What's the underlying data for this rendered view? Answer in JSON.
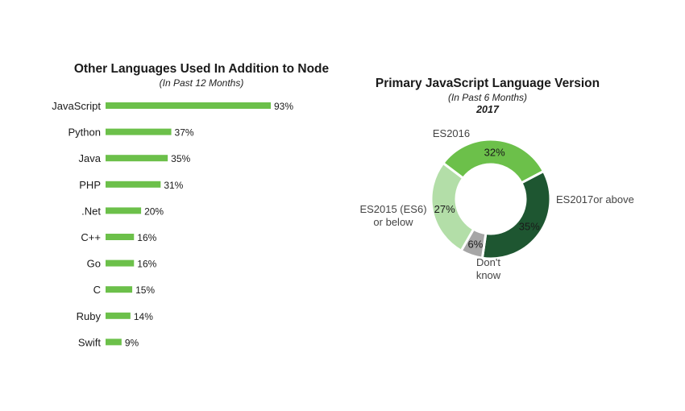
{
  "chart_data": [
    {
      "type": "bar",
      "orientation": "horizontal",
      "title": "Other Languages Used In Addition to Node",
      "subtitle": "(In Past 12 Months)",
      "categories": [
        "JavaScript",
        "Python",
        "Java",
        "PHP",
        ".Net",
        "C++",
        "Go",
        "C",
        "Ruby",
        "Swift"
      ],
      "values": [
        93,
        37,
        35,
        31,
        20,
        16,
        16,
        15,
        14,
        9
      ],
      "value_labels": [
        "93%",
        "37%",
        "35%",
        "31%",
        "20%",
        "16%",
        "16%",
        "15%",
        "14%",
        "9%"
      ],
      "xlim": [
        0,
        100
      ],
      "grid": false,
      "bar_color": "#6cc04a"
    },
    {
      "type": "pie",
      "variant": "donut",
      "title": "Primary JavaScript Language Version",
      "subtitle": "(In Past 6 Months)",
      "year": "2017",
      "slices": [
        {
          "category": "ES2016",
          "value": 32,
          "label": "32%",
          "color": "#6cc04a"
        },
        {
          "category": "ES2017or above",
          "value": 35,
          "label": "35%",
          "color": "#1e5631"
        },
        {
          "category": "Don't know",
          "value": 6,
          "label": "6%",
          "color": "#a6a6a6"
        },
        {
          "category": "ES2015 (ES6) or below",
          "value": 27,
          "label": "27%",
          "color": "#b3dea8"
        }
      ]
    }
  ]
}
